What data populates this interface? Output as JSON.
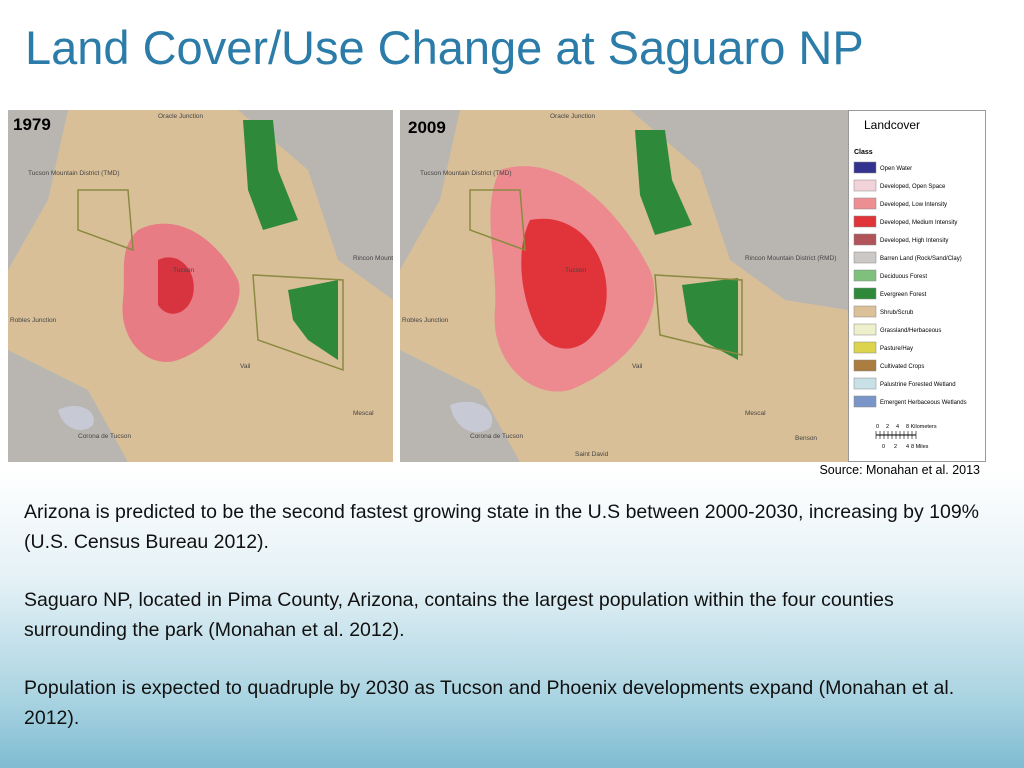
{
  "title": "Land Cover/Use Change at Saguaro NP",
  "maps": [
    {
      "year": "1979",
      "labels": [
        "Oracle Junction",
        "Tucson Mountain District (TMD)",
        "Rincon Mountain District (RMD)",
        "Robles Junction",
        "Tucson",
        "Vail",
        "Mescal",
        "Corona de Tucson"
      ]
    },
    {
      "year": "2009",
      "labels": [
        "Oracle Junction",
        "Tucson Mountain District (TMD)",
        "Rincon Mountain District (RMD)",
        "Robles Junction",
        "Tucson",
        "Vail",
        "Mescal",
        "Corona de Tucson",
        "Benson",
        "Saint David"
      ]
    }
  ],
  "legend": {
    "title": "Landcover",
    "heading": "Class",
    "classes": [
      {
        "name": "Open Water",
        "color": "#33338f"
      },
      {
        "name": "Developed, Open Space",
        "color": "#f3d3da"
      },
      {
        "name": "Developed, Low Intensity",
        "color": "#ec8e92"
      },
      {
        "name": "Developed, Medium Intensity",
        "color": "#e0343a"
      },
      {
        "name": "Developed, High Intensity",
        "color": "#b1545a"
      },
      {
        "name": "Barren Land (Rock/Sand/Clay)",
        "color": "#cbc8c6"
      },
      {
        "name": "Deciduous Forest",
        "color": "#7fc07c"
      },
      {
        "name": "Evergreen Forest",
        "color": "#2e8a3a"
      },
      {
        "name": "Shrub/Scrub",
        "color": "#dcc198"
      },
      {
        "name": "Grassland/Herbaceous",
        "color": "#eef0cc"
      },
      {
        "name": "Pasture/Hay",
        "color": "#dcd44c"
      },
      {
        "name": "Cultivated Crops",
        "color": "#ab7c40"
      },
      {
        "name": "Palustrine Forested Wetland",
        "color": "#c7e1e7"
      },
      {
        "name": "Emergent Herbaceous Wetlands",
        "color": "#7a96c8"
      }
    ],
    "scale_km": [
      "0",
      "2",
      "4",
      "8 Kilometers"
    ],
    "scale_mi": [
      "0",
      "2",
      "4",
      "8 Miles"
    ]
  },
  "source": "Source: Monahan et al. 2013",
  "paragraphs": [
    "Arizona is predicted to be the second fastest growing state in the U.S between 2000-2030, increasing by 109% (U.S. Census Bureau 2012).",
    "Saguaro NP, located in Pima County, Arizona, contains the largest population within the four counties surrounding the park (Monahan et al. 2012).",
    "Population is expected to quadruple by 2030 as Tucson and Phoenix developments expand (Monahan et al. 2012)."
  ]
}
